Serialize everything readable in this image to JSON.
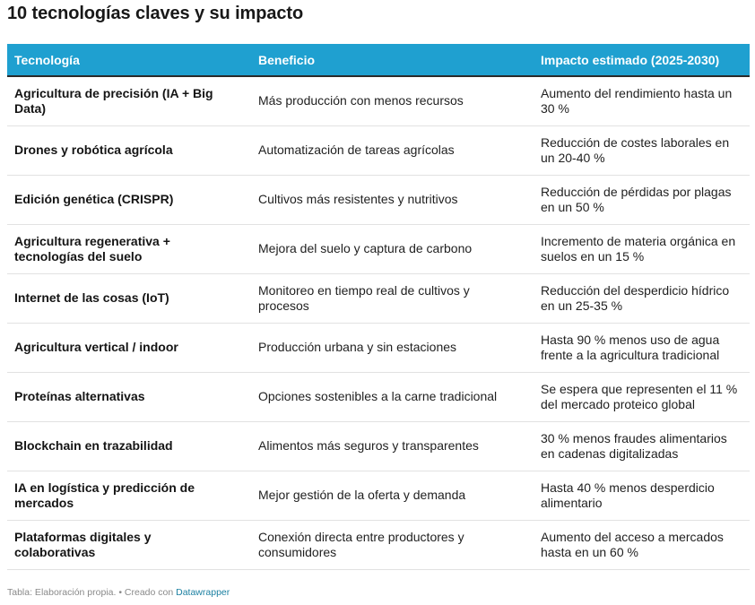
{
  "title": "10 tecnologías claves y su impacto",
  "colors": {
    "header_background": "#1fa0d0",
    "header_text": "#ffffff",
    "row_divider": "#e2e2e2",
    "footer_link": "#1d81a2"
  },
  "chart_data": {
    "type": "table",
    "title": "10 tecnologías claves y su impacto",
    "columns": [
      "Tecnología",
      "Beneficio",
      "Impacto estimado (2025-2030)"
    ],
    "rows": [
      [
        "Agricultura de precisión (IA + Big Data)",
        "Más producción con menos recursos",
        "Aumento del rendimiento hasta un 30 %"
      ],
      [
        "Drones y robótica agrícola",
        "Automatización de tareas agrícolas",
        "Reducción de costes laborales en un 20-40 %"
      ],
      [
        "Edición genética (CRISPR)",
        "Cultivos más resistentes y nutritivos",
        "Reducción de pérdidas por plagas en un 50 %"
      ],
      [
        "Agricultura regenerativa + tecnologías del suelo",
        "Mejora del suelo y captura de carbono",
        "Incremento de materia orgánica en suelos en un 15 %"
      ],
      [
        "Internet de las cosas (IoT)",
        "Monitoreo en tiempo real de cultivos y procesos",
        "Reducción del desperdicio hídrico en un 25-35 %"
      ],
      [
        "Agricultura vertical / indoor",
        "Producción urbana y sin estaciones",
        "Hasta 90 % menos uso de agua frente a la agricultura tradicional"
      ],
      [
        "Proteínas alternativas",
        "Opciones sostenibles a la carne tradicional",
        "Se espera que representen el 11 % del mercado proteico global"
      ],
      [
        "Blockchain en trazabilidad",
        "Alimentos más seguros y transparentes",
        "30 % menos fraudes alimentarios en cadenas digitalizadas"
      ],
      [
        "IA en logística y predicción de mercados",
        "Mejor gestión de la oferta y demanda",
        "Hasta 40 % menos desperdicio alimentario"
      ],
      [
        "Plataformas digitales y colaborativas",
        "Conexión directa entre productores y consumidores",
        "Aumento del acceso a mercados hasta en un 60 %"
      ]
    ]
  },
  "footer": {
    "source_text": "Tabla: Elaboración propia. • Creado con ",
    "link_text": "Datawrapper"
  }
}
